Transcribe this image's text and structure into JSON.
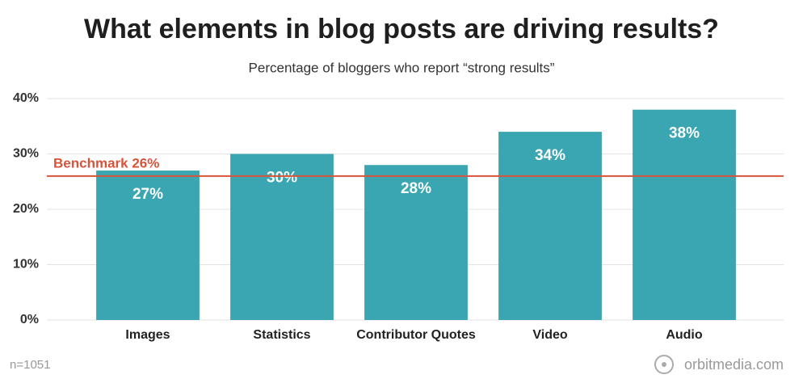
{
  "chart_data": {
    "type": "bar",
    "title": "What elements in blog posts are driving results?",
    "subtitle": "Percentage of bloggers who report “strong results”",
    "categories": [
      "Images",
      "Statistics",
      "Contributor Quotes",
      "Video",
      "Audio"
    ],
    "values": [
      27,
      30,
      28,
      34,
      38
    ],
    "value_labels": [
      "27%",
      "30%",
      "28%",
      "34%",
      "38%"
    ],
    "color": "#3aa6b2",
    "ylim": [
      0,
      40
    ],
    "yticks": [
      {
        "value": 0,
        "label": "0%"
      },
      {
        "value": 10,
        "label": "10%"
      },
      {
        "value": 20,
        "label": "20%"
      },
      {
        "value": 30,
        "label": "30%"
      },
      {
        "value": 40,
        "label": "40%"
      }
    ],
    "grid": true,
    "benchmark": {
      "value": 26,
      "label": "Benchmark 26%",
      "color": "#d9533a"
    },
    "note": "n=1051",
    "source": "orbitmedia.com"
  }
}
